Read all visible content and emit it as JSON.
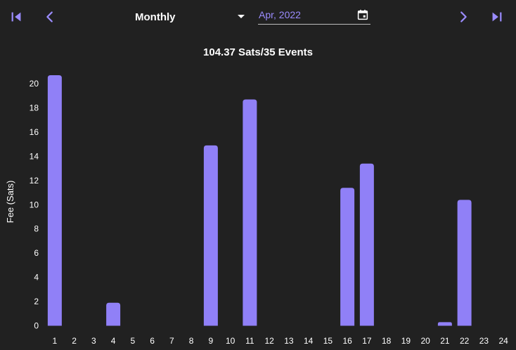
{
  "toolbar": {
    "first_icon": "first-page-icon",
    "prev_icon": "chevron-left-icon",
    "next_icon": "chevron-right-icon",
    "last_icon": "last-page-icon",
    "period_value": "Monthly",
    "date_value": "Apr, 2022",
    "calendar_icon": "calendar-icon"
  },
  "colors": {
    "accent": "#9b8cff",
    "bar": "#9080f7",
    "background": "#212121",
    "text": "#ffffff"
  },
  "chart_data": {
    "type": "bar",
    "title": "104.37 Sats/35 Events",
    "ylabel": "Fee (Sats)",
    "xlabel": "",
    "ylim": [
      0,
      20.8
    ],
    "yticks": [
      0,
      2,
      4,
      6,
      8,
      10,
      12,
      14,
      16,
      18,
      20
    ],
    "categories": [
      "1",
      "2",
      "3",
      "4",
      "5",
      "6",
      "7",
      "8",
      "9",
      "10",
      "11",
      "12",
      "13",
      "14",
      "15",
      "16",
      "17",
      "18",
      "19",
      "20",
      "21",
      "22",
      "23",
      "24"
    ],
    "values": [
      20.7,
      0,
      0,
      1.9,
      0,
      0,
      0,
      0,
      14.9,
      0,
      18.7,
      0,
      0,
      0,
      0,
      11.4,
      13.4,
      0,
      0,
      0,
      0.3,
      10.4,
      0,
      0
    ],
    "grid": false,
    "legend": "none"
  }
}
